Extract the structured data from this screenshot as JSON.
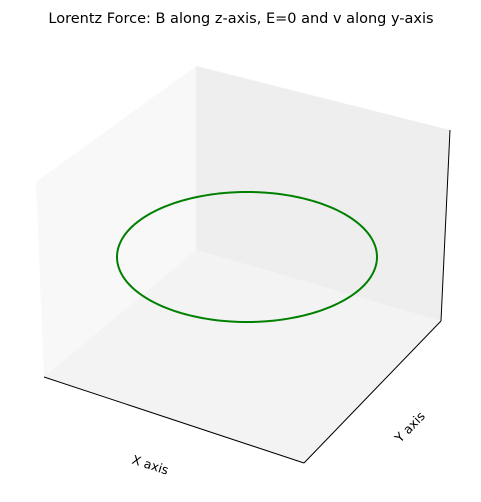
{
  "chart_data": {
    "type": "line3d",
    "title": "Lorentz Force: B along z-axis, E=0 and v along y-axis",
    "xlabel": "X axis",
    "ylabel": "Y axis",
    "zlabel": "",
    "ticks_visible": false,
    "grid": false,
    "series": [
      {
        "color": "#008000",
        "shape": "circle in the x-y plane (constant z), traced by the charged particle",
        "center": [
          0,
          0,
          0
        ],
        "radius": 1
      }
    ]
  }
}
